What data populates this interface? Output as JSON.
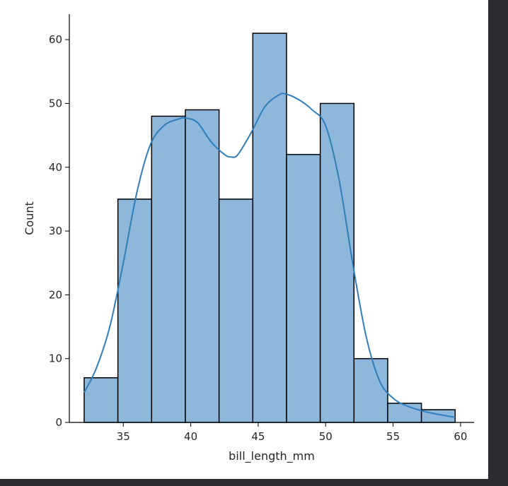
{
  "colors": {
    "background": "#2b2d33",
    "figure": "#ffffff",
    "bar_fill": "#8db8dc",
    "bar_edge": "#000000",
    "kde_line": "#2f7ebc",
    "axis": "#000000"
  },
  "chart_data": {
    "type": "bar",
    "subtype": "histogram with KDE",
    "title": "",
    "xlabel": "bill_length_mm",
    "ylabel": "Count",
    "xlim": [
      31,
      61
    ],
    "ylim": [
      0,
      64
    ],
    "xticks": [
      35,
      40,
      45,
      50,
      55,
      60
    ],
    "yticks": [
      0,
      10,
      20,
      30,
      40,
      50,
      60
    ],
    "grid": false,
    "legend": "none",
    "bins": [
      {
        "start": 32.1,
        "end": 34.6,
        "count": 7
      },
      {
        "start": 34.6,
        "end": 37.1,
        "count": 35
      },
      {
        "start": 37.1,
        "end": 39.6,
        "count": 48
      },
      {
        "start": 39.6,
        "end": 42.1,
        "count": 49
      },
      {
        "start": 42.1,
        "end": 44.6,
        "count": 35
      },
      {
        "start": 44.6,
        "end": 47.1,
        "count": 61
      },
      {
        "start": 47.1,
        "end": 49.6,
        "count": 42
      },
      {
        "start": 49.6,
        "end": 52.1,
        "count": 50
      },
      {
        "start": 52.1,
        "end": 54.6,
        "count": 10
      },
      {
        "start": 54.6,
        "end": 57.1,
        "count": 3
      },
      {
        "start": 57.1,
        "end": 59.6,
        "count": 2
      }
    ],
    "kde": {
      "x": [
        32.1,
        33.0,
        34.0,
        35.0,
        36.0,
        37.0,
        38.0,
        39.0,
        39.6,
        40.5,
        41.5,
        42.5,
        43.0,
        43.5,
        44.5,
        45.5,
        46.5,
        47.0,
        48.0,
        49.0,
        50.0,
        51.0,
        52.0,
        53.0,
        54.0,
        55.0,
        56.0,
        57.0,
        58.0,
        59.6
      ],
      "y": [
        4.7,
        8.5,
        15.0,
        25.0,
        36.0,
        43.5,
        46.5,
        47.5,
        47.7,
        47.0,
        44.0,
        42.0,
        41.6,
        42.0,
        45.5,
        49.5,
        51.3,
        51.5,
        50.6,
        49.0,
        46.5,
        38.0,
        25.0,
        13.5,
        6.5,
        3.8,
        2.6,
        1.9,
        1.4,
        0.8
      ]
    }
  }
}
